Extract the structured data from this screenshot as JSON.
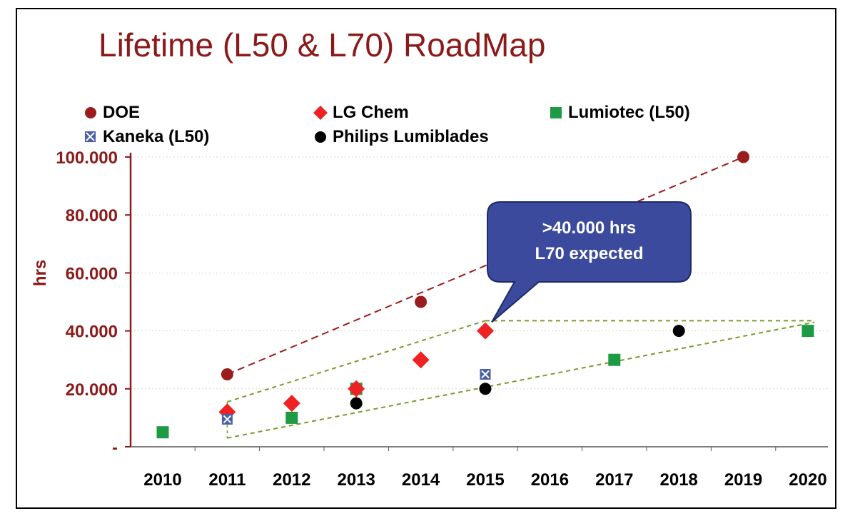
{
  "chart_data": {
    "type": "scatter",
    "title": "Lifetime (L50 & L70)  RoadMap",
    "ylabel": "hrs",
    "xlabel": "",
    "x_categories": [
      "2010",
      "2011",
      "2012",
      "2013",
      "2014",
      "2015",
      "2016",
      "2017",
      "2018",
      "2019",
      "2020"
    ],
    "y_ticks": [
      0,
      20000,
      40000,
      60000,
      80000,
      100000
    ],
    "y_tick_labels": [
      "-",
      "20.000",
      "40.000",
      "60.000",
      "80.000",
      "100.000"
    ],
    "ylim": [
      0,
      100000
    ],
    "grid": "horizontal dotted",
    "legend_position": "top",
    "series": [
      {
        "name": "DOE",
        "marker": "circle",
        "color": "#9b1c1c",
        "points": [
          {
            "x": 2011,
            "y": 25000
          },
          {
            "x": 2014,
            "y": 50000
          },
          {
            "x": 2019,
            "y": 100000
          }
        ]
      },
      {
        "name": "LG Chem",
        "marker": "diamond",
        "color": "#ee2222",
        "points": [
          {
            "x": 2011,
            "y": 12000
          },
          {
            "x": 2012,
            "y": 15000
          },
          {
            "x": 2013,
            "y": 20000
          },
          {
            "x": 2014,
            "y": 30000
          },
          {
            "x": 2015,
            "y": 40000
          }
        ]
      },
      {
        "name": "Lumiotec (L50)",
        "marker": "square",
        "color": "#1e9a44",
        "points": [
          {
            "x": 2010,
            "y": 5000
          },
          {
            "x": 2012,
            "y": 10000
          },
          {
            "x": 2013,
            "y": 20000
          },
          {
            "x": 2017,
            "y": 30000
          },
          {
            "x": 2020,
            "y": 40000
          }
        ]
      },
      {
        "name": "Kaneka (L50)",
        "marker": "square-x",
        "color": "#4a5fa8",
        "points": [
          {
            "x": 2011,
            "y": 9500
          },
          {
            "x": 2015,
            "y": 25000
          }
        ]
      },
      {
        "name": "Philips Lumiblades",
        "marker": "circle",
        "color": "#000000",
        "points": [
          {
            "x": 2013,
            "y": 15000
          },
          {
            "x": 2015,
            "y": 20000
          },
          {
            "x": 2018,
            "y": 40000
          }
        ]
      }
    ],
    "trend_lines": [
      {
        "color": "#9b1c1c",
        "from": {
          "x": 2011,
          "y": 25000
        },
        "to": {
          "x": 2019,
          "y": 100000
        }
      },
      {
        "color": "#7a9a2a",
        "from": {
          "x": 2011,
          "y": 15500
        },
        "to": {
          "x": 2015,
          "y": 43500
        }
      },
      {
        "color": "#7a9a2a",
        "from": {
          "x": 2015,
          "y": 43500
        },
        "to": {
          "x": 2020.1,
          "y": 43500
        }
      },
      {
        "color": "#7a9a2a",
        "from": {
          "x": 2011,
          "y": 3000
        },
        "to": {
          "x": 2020.1,
          "y": 43000
        }
      }
    ],
    "annotations": [
      {
        "lines": [
          ">40.000 hrs",
          "L70 expected"
        ],
        "fill": "#3b4a9c",
        "points_to": {
          "x": 2015.1,
          "y": 43000
        }
      }
    ]
  }
}
